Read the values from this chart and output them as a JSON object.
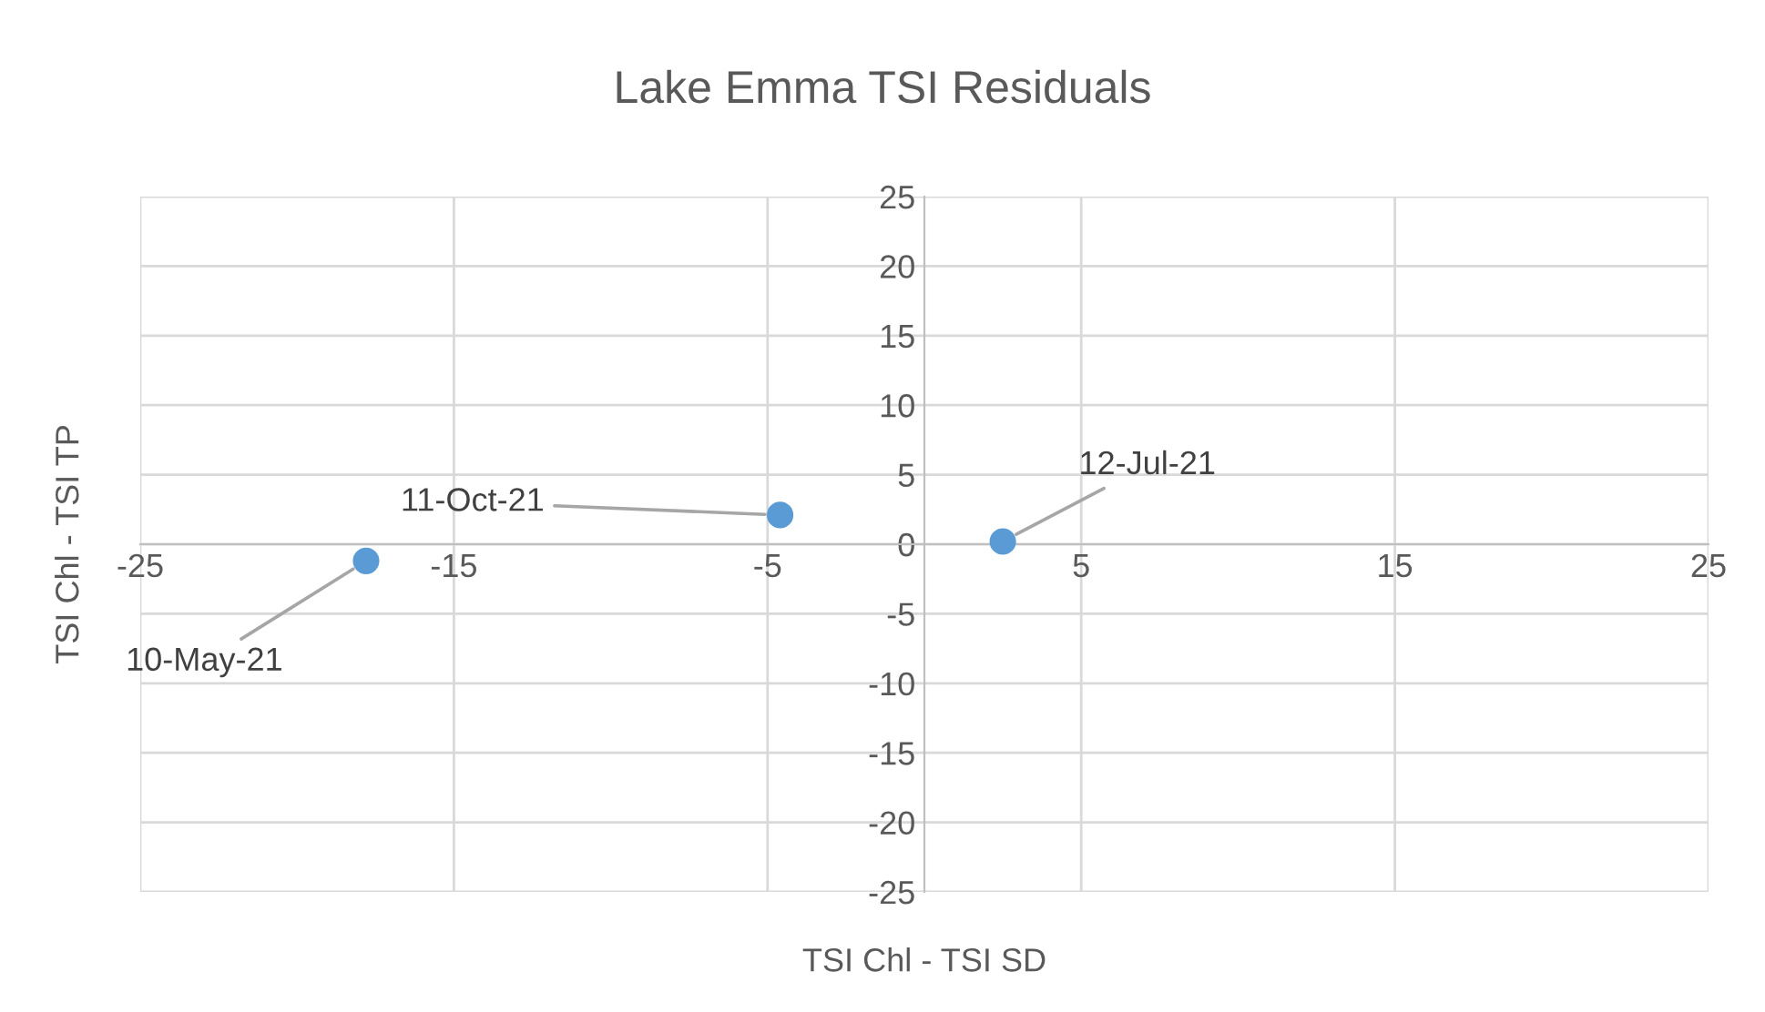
{
  "chart_data": {
    "type": "scatter",
    "title": "Lake Emma TSI Residuals",
    "xlabel": "TSI Chl - TSI SD",
    "ylabel": "TSI Chl - TSI TP",
    "x": [
      -17.8,
      -4.6,
      2.5
    ],
    "series": [
      {
        "color": "#5b9bd5",
        "values": [
          -1.2,
          2.1,
          0.2
        ]
      }
    ],
    "annotations": [
      {
        "text": "10-May-21",
        "x": -17.8,
        "y": -1.2
      },
      {
        "text": "11-Oct-21",
        "x": -4.6,
        "y": 2.1
      },
      {
        "text": "12-Jul-21",
        "x": 2.5,
        "y": 0.2
      }
    ],
    "xlim": [
      -25,
      25
    ],
    "ylim": [
      -25,
      25
    ],
    "xticks": [
      -25,
      -15,
      -5,
      5,
      15,
      25
    ],
    "yticks": [
      -25,
      -20,
      -15,
      -10,
      -5,
      0,
      5,
      10,
      15,
      20,
      25
    ],
    "grid": true,
    "marker": "circle",
    "legend": false
  }
}
